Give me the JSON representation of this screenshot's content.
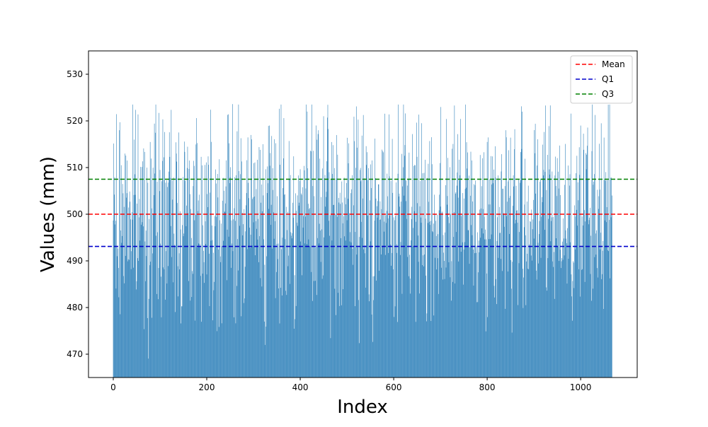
{
  "chart_data": {
    "type": "bar",
    "title": "",
    "xlabel": "Index",
    "ylabel": "Values (mm)",
    "xlim": [
      -53,
      1121
    ],
    "ylim": [
      465,
      535
    ],
    "xticks": [
      0,
      200,
      400,
      600,
      800,
      1000
    ],
    "yticks": [
      470,
      480,
      490,
      500,
      510,
      520,
      530
    ],
    "bar_color": "#1f77b4",
    "n_bars": 1068,
    "value_range": [
      465,
      523.5
    ],
    "approx_peaks": [
      [
        2,
        504.2
      ],
      [
        8,
        491.0
      ],
      [
        12,
        482.2
      ],
      [
        25,
        513.0
      ],
      [
        30,
        511.5
      ],
      [
        65,
        514.1
      ],
      [
        100,
        509.5
      ],
      [
        135,
        513.0
      ],
      [
        178,
        520.6
      ],
      [
        210,
        515.5
      ],
      [
        255,
        523.6
      ],
      [
        320,
        515.0
      ],
      [
        365,
        520.6
      ],
      [
        415,
        522.0
      ],
      [
        450,
        521.0
      ],
      [
        520,
        523.1
      ],
      [
        560,
        516.2
      ],
      [
        625,
        521.6
      ],
      [
        660,
        519.5
      ],
      [
        730,
        523.3
      ],
      [
        790,
        512.0
      ],
      [
        840,
        518.0
      ],
      [
        925,
        523.3
      ],
      [
        1000,
        519.0
      ],
      [
        1040,
        515.1
      ],
      [
        1068,
        523.3
      ]
    ],
    "lines": [
      {
        "name": "Mean",
        "y": 500.0,
        "color": "#ff0000"
      },
      {
        "name": "Q1",
        "y": 493.1,
        "color": "#0000cc"
      },
      {
        "name": "Q3",
        "y": 507.5,
        "color": "#008000"
      }
    ],
    "legend": {
      "placement": "upper right",
      "entries": [
        {
          "label": "Mean",
          "color": "#ff0000"
        },
        {
          "label": "Q1",
          "color": "#0000cc"
        },
        {
          "label": "Q3",
          "color": "#008000"
        }
      ]
    },
    "grid": false
  }
}
